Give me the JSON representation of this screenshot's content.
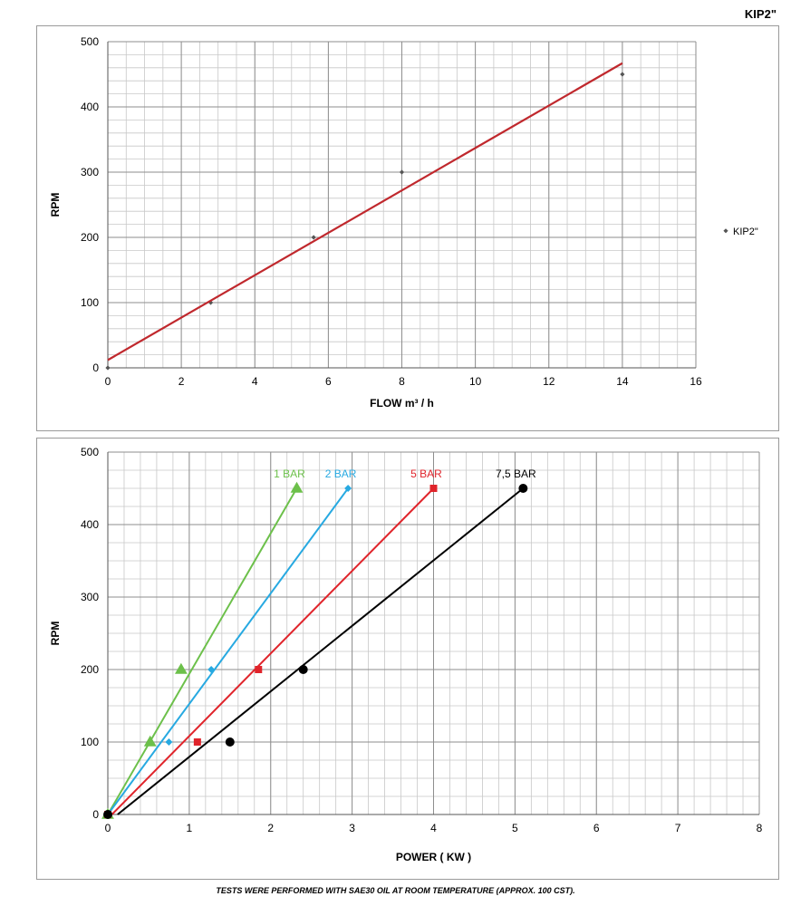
{
  "page_title": "KIP2\"",
  "footnote": "TESTS WERE PERFORMED WITH SAE30 OIL AT ROOM TEMPERATURE (APPROX. 100 CST).",
  "chart_data": [
    {
      "type": "scatter",
      "xlabel": "FLOW m³ / h",
      "ylabel": "RPM",
      "xlim": [
        0,
        16
      ],
      "ylim": [
        0,
        500
      ],
      "xticks": [
        0,
        2,
        4,
        6,
        8,
        10,
        12,
        14,
        16
      ],
      "yticks": [
        0,
        100,
        200,
        300,
        400,
        500
      ],
      "grid": true,
      "legend_position": "right",
      "series": [
        {
          "name": "KIP2\"",
          "color": "#555555",
          "marker": "diamond",
          "x": [
            0,
            2.8,
            5.6,
            8,
            14
          ],
          "y": [
            0,
            100,
            200,
            300,
            450
          ]
        }
      ],
      "trendline": {
        "color": "#c0282d",
        "x": [
          0,
          14
        ],
        "y": [
          12,
          467
        ]
      }
    },
    {
      "type": "line",
      "xlabel": "POWER ( KW )",
      "ylabel": "RPM",
      "xlim": [
        0,
        8
      ],
      "ylim": [
        0,
        500
      ],
      "xticks": [
        0,
        1,
        2,
        3,
        4,
        5,
        6,
        7,
        8
      ],
      "yticks": [
        0,
        100,
        200,
        300,
        400,
        500
      ],
      "grid": true,
      "series": [
        {
          "name": "1 BAR",
          "color": "#6cc04a",
          "marker": "triangle",
          "points_x": [
            0,
            0.52,
            0.9,
            2.32
          ],
          "points_y": [
            0,
            100,
            200,
            450
          ],
          "line_x": [
            0,
            2.32
          ],
          "line_y": [
            0,
            450
          ]
        },
        {
          "name": "2 BAR",
          "color": "#27a9e1",
          "marker": "diamond",
          "points_x": [
            0,
            0.75,
            1.27,
            2.95
          ],
          "points_y": [
            0,
            100,
            200,
            450
          ],
          "line_x": [
            0,
            2.95
          ],
          "line_y": [
            0,
            450
          ]
        },
        {
          "name": "5 BAR",
          "color": "#e0242b",
          "marker": "square",
          "points_x": [
            0,
            1.1,
            1.85,
            4.0
          ],
          "points_y": [
            0,
            100,
            200,
            450
          ],
          "line_x": [
            0.05,
            4.0
          ],
          "line_y": [
            0,
            450
          ]
        },
        {
          "name": "7,5 BAR",
          "color": "#000000",
          "marker": "circle",
          "points_x": [
            0,
            1.5,
            2.4,
            5.1
          ],
          "points_y": [
            0,
            100,
            200,
            450
          ],
          "line_x": [
            0.12,
            5.1
          ],
          "line_y": [
            0,
            450
          ]
        }
      ]
    }
  ]
}
